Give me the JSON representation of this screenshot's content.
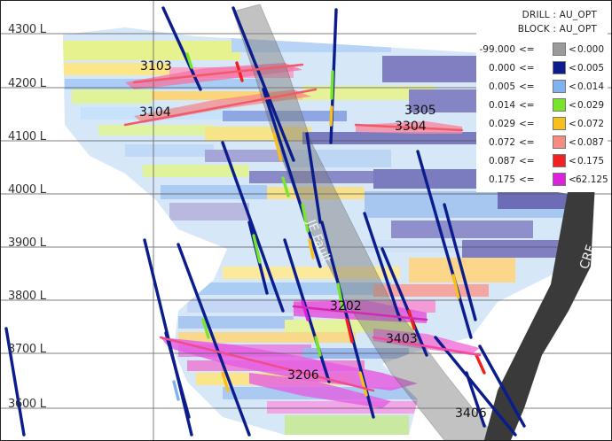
{
  "legend": {
    "title_drill": "DRILL : AU_OPT",
    "title_block": "BLOCK : AU_OPT",
    "rows": [
      {
        "min": "-99.000",
        "op1": "<=",
        "op2": "<",
        "max": "0.000",
        "color": "#9a9a9a"
      },
      {
        "min": "0.000",
        "op1": "<=",
        "op2": "<",
        "max": "0.005",
        "color": "#0b1d8c"
      },
      {
        "min": "0.005",
        "op1": "<=",
        "op2": "<",
        "max": "0.014",
        "color": "#7fb2f0"
      },
      {
        "min": "0.014",
        "op1": "<=",
        "op2": "<",
        "max": "0.029",
        "color": "#77e62a"
      },
      {
        "min": "0.029",
        "op1": "<=",
        "op2": "<",
        "max": "0.072",
        "color": "#f7c01c"
      },
      {
        "min": "0.072",
        "op1": "<=",
        "op2": "<",
        "max": "0.087",
        "color": "#f48c80"
      },
      {
        "min": "0.087",
        "op1": "<=",
        "op2": "<",
        "max": "0.175",
        "color": "#f22020"
      },
      {
        "min": "0.175",
        "op1": "<=",
        "op2": "<",
        "max": "62.125",
        "color": "#dd22dd"
      }
    ]
  },
  "elevations": [
    "4300 L",
    "4200 L",
    "4100 L",
    "4000 L",
    "3900 L",
    "3800 L",
    "3700 L",
    "3600 L"
  ],
  "zones": [
    "3103",
    "3104",
    "3305",
    "3304",
    "3202",
    "3403",
    "3206",
    "3406"
  ],
  "faults": {
    "je": "JE Fault",
    "crf": "CRF"
  }
}
